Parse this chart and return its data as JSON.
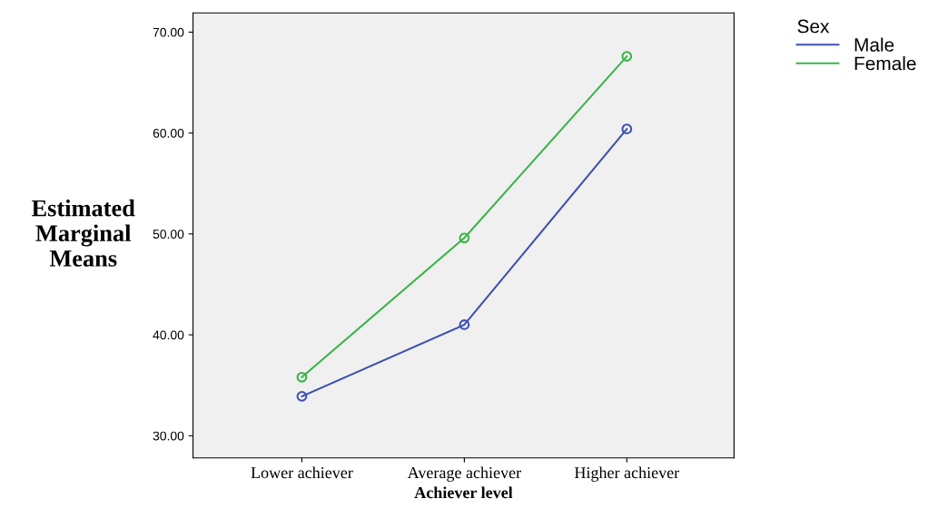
{
  "chart_data": {
    "type": "line",
    "xlabel": "Achiever level",
    "ylabel": "Estimated\nMarginal\nMeans",
    "legend_title": "Sex",
    "legend": "top right",
    "marker": "circle",
    "line_style": "solid",
    "grid": false,
    "categories": [
      "Lower achiever",
      "Average achiever",
      "Higher achiever"
    ],
    "series": [
      {
        "name": "Male",
        "color": "#3f51b1",
        "values": [
          33.9,
          41.0,
          60.4
        ]
      },
      {
        "name": "Female",
        "color": "#3cb44a",
        "values": [
          35.8,
          49.6,
          67.6
        ]
      }
    ],
    "ylim": [
      27.8,
      71.9
    ],
    "yticks": [
      {
        "value": 30,
        "label": "30.00"
      },
      {
        "value": 40,
        "label": "40.00"
      },
      {
        "value": 50,
        "label": "50.00"
      },
      {
        "value": 60,
        "label": "60.00"
      },
      {
        "value": 70,
        "label": "70.00"
      }
    ]
  }
}
